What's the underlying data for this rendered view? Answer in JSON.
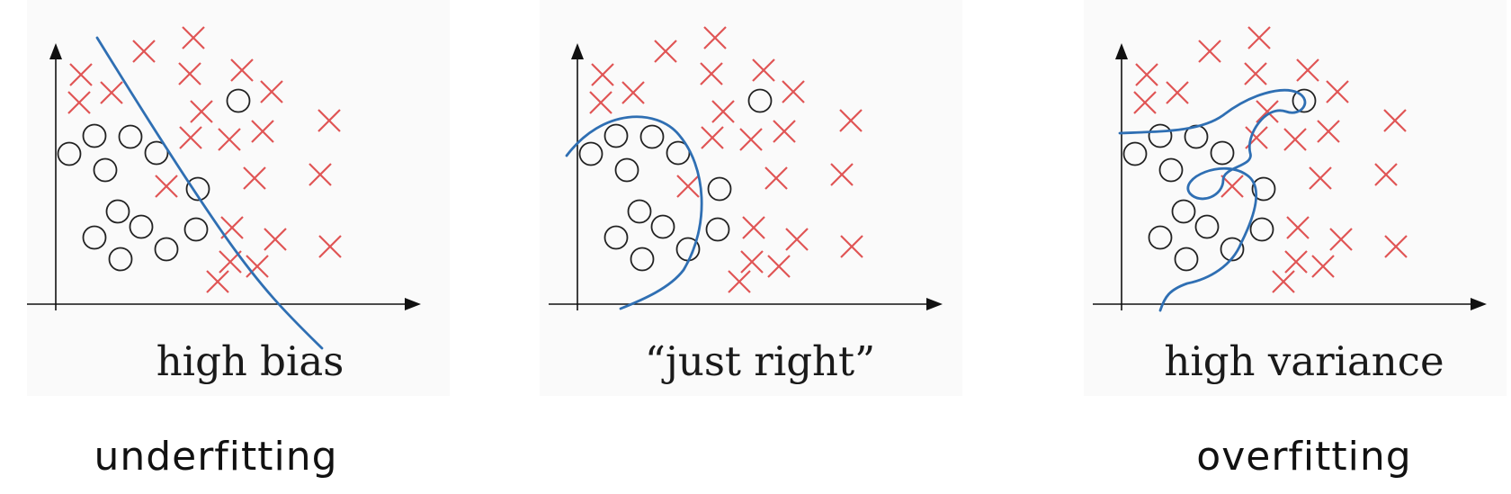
{
  "panels": [
    {
      "caption": "high bias"
    },
    {
      "caption": "“just right”"
    },
    {
      "caption": "high variance"
    }
  ],
  "footers": {
    "left": "underfitting",
    "right": "overfitting"
  },
  "colors": {
    "cross": "#e05555",
    "circle": "#222222",
    "boundary": "#2f6fb3",
    "axis": "#111111"
  }
}
